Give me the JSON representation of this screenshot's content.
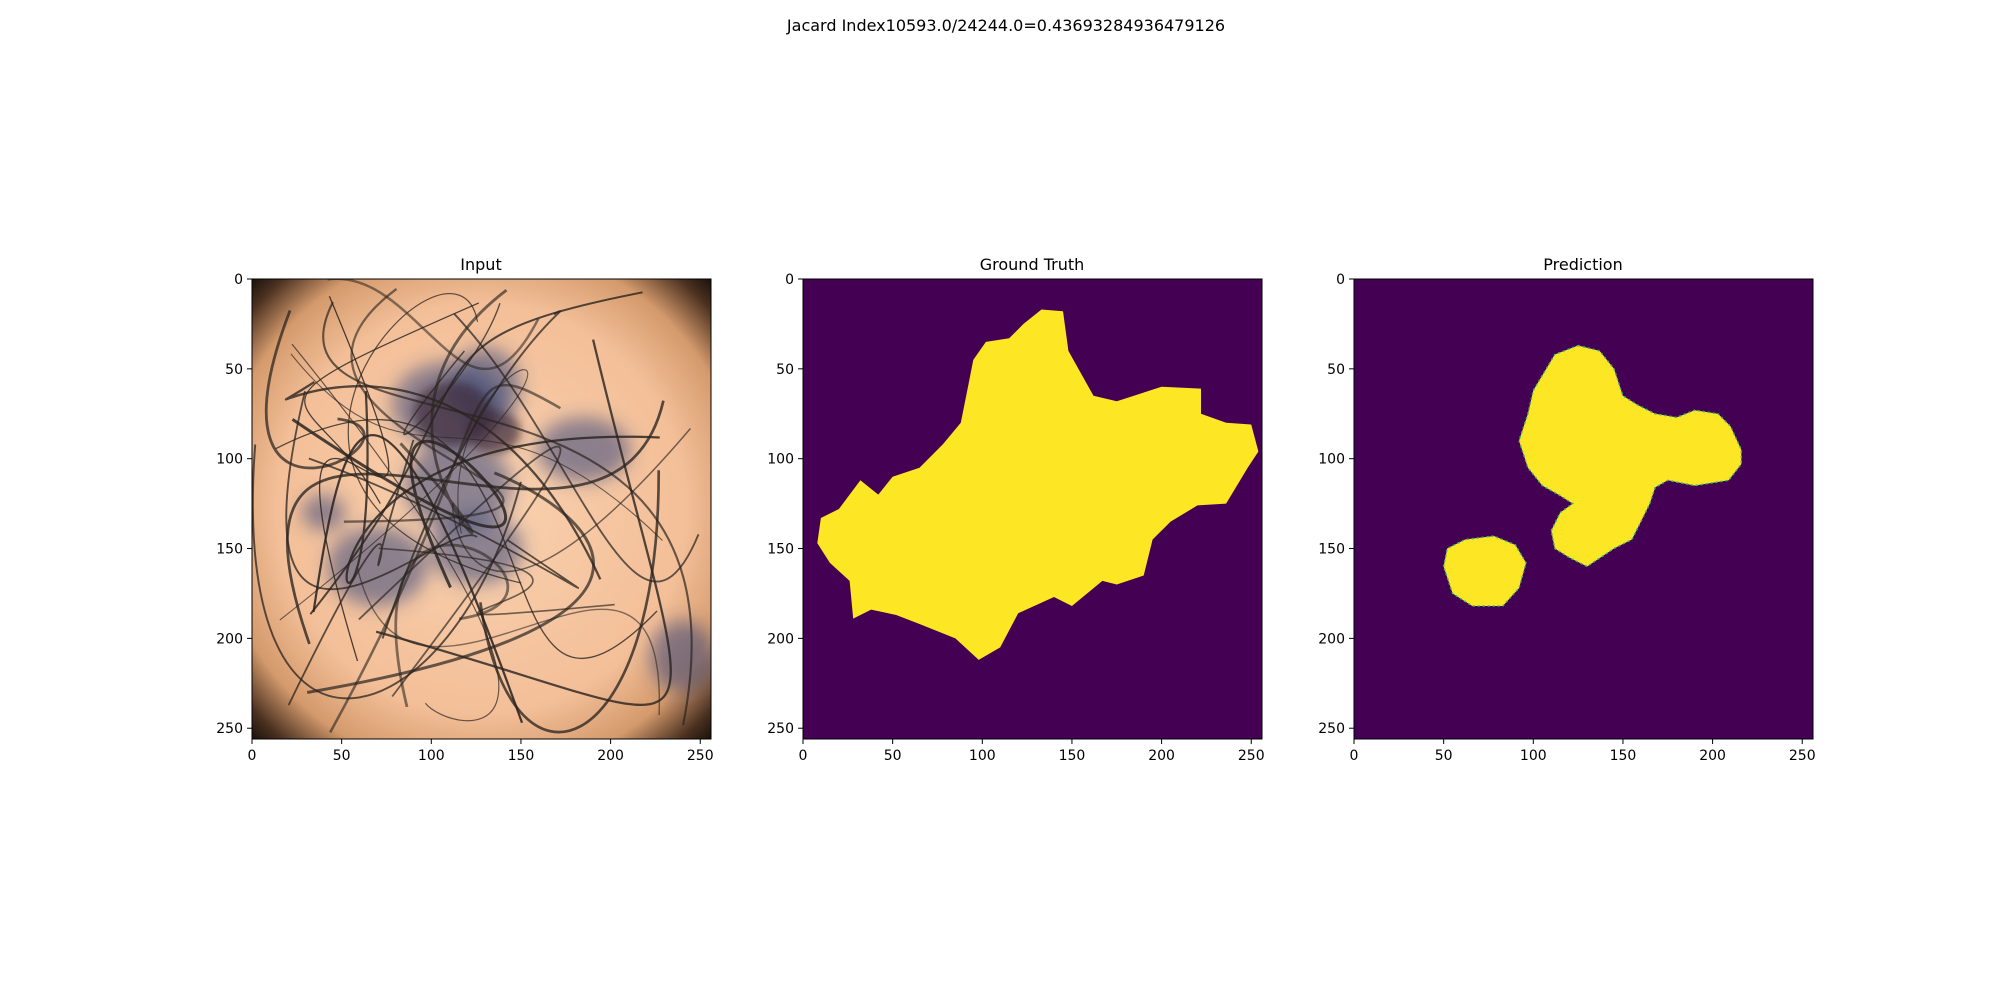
{
  "figure": {
    "suptitle": "Jacard Index10593.0/24244.0=0.43693284936479126"
  },
  "colors": {
    "background": "#440154",
    "foreground": "#fde725",
    "edge": "#35b779",
    "skin_light": "#f9d2b0",
    "skin_mid": "#f0b58d",
    "vignette": "#0d0805",
    "pigment_dark": "#3a2a3a",
    "pigment_blue": "#35457a",
    "hair": "#2a2420"
  },
  "chart_data": [
    {
      "type": "image",
      "title": "Input",
      "image_kind": "dermoscopy",
      "xlim": [
        0,
        256
      ],
      "ylim": [
        256,
        0
      ],
      "xticks": [
        0,
        50,
        100,
        150,
        200,
        250
      ],
      "yticks": [
        0,
        50,
        100,
        150,
        200,
        250
      ],
      "blue_blobs": [
        {
          "x": 110,
          "y": 70,
          "rx": 32,
          "ry": 24
        },
        {
          "x": 130,
          "y": 60,
          "rx": 20,
          "ry": 22
        },
        {
          "x": 185,
          "y": 95,
          "rx": 26,
          "ry": 18
        },
        {
          "x": 70,
          "y": 160,
          "rx": 28,
          "ry": 22
        },
        {
          "x": 125,
          "y": 150,
          "rx": 26,
          "ry": 20
        },
        {
          "x": 40,
          "y": 130,
          "rx": 12,
          "ry": 10
        },
        {
          "x": 240,
          "y": 210,
          "rx": 18,
          "ry": 20
        },
        {
          "x": 115,
          "y": 115,
          "rx": 30,
          "ry": 25
        }
      ],
      "dark_blobs": [
        {
          "x": 112,
          "y": 75,
          "rx": 22,
          "ry": 18
        },
        {
          "x": 135,
          "y": 85,
          "rx": 15,
          "ry": 12
        }
      ]
    },
    {
      "type": "mask",
      "title": "Ground Truth",
      "xlim": [
        0,
        256
      ],
      "ylim": [
        256,
        0
      ],
      "xticks": [
        0,
        50,
        100,
        150,
        200,
        250
      ],
      "yticks": [
        0,
        50,
        100,
        150,
        200,
        250
      ],
      "polygons": [
        [
          [
            133,
            17
          ],
          [
            145,
            18
          ],
          [
            148,
            40
          ],
          [
            162,
            65
          ],
          [
            175,
            68
          ],
          [
            200,
            60
          ],
          [
            222,
            61
          ],
          [
            222,
            75
          ],
          [
            236,
            80
          ],
          [
            250,
            81
          ],
          [
            254,
            96
          ],
          [
            248,
            105
          ],
          [
            236,
            125
          ],
          [
            220,
            126
          ],
          [
            205,
            135
          ],
          [
            195,
            145
          ],
          [
            190,
            165
          ],
          [
            175,
            170
          ],
          [
            167,
            168
          ],
          [
            150,
            182
          ],
          [
            140,
            177
          ],
          [
            120,
            186
          ],
          [
            110,
            205
          ],
          [
            98,
            212
          ],
          [
            85,
            200
          ],
          [
            65,
            192
          ],
          [
            52,
            187
          ],
          [
            38,
            184
          ],
          [
            28,
            189
          ],
          [
            26,
            168
          ],
          [
            15,
            158
          ],
          [
            8,
            147
          ],
          [
            10,
            133
          ],
          [
            20,
            128
          ],
          [
            32,
            112
          ],
          [
            42,
            120
          ],
          [
            50,
            110
          ],
          [
            65,
            105
          ],
          [
            78,
            92
          ],
          [
            88,
            80
          ],
          [
            92,
            60
          ],
          [
            95,
            45
          ],
          [
            102,
            35
          ],
          [
            115,
            33
          ],
          [
            123,
            25
          ]
        ]
      ]
    },
    {
      "type": "mask",
      "title": "Prediction",
      "xlim": [
        0,
        256
      ],
      "ylim": [
        256,
        0
      ],
      "xticks": [
        0,
        50,
        100,
        150,
        200,
        250
      ],
      "yticks": [
        0,
        50,
        100,
        150,
        200,
        250
      ],
      "polygons": [
        [
          [
            125,
            37
          ],
          [
            137,
            40
          ],
          [
            145,
            50
          ],
          [
            150,
            65
          ],
          [
            158,
            70
          ],
          [
            168,
            75
          ],
          [
            180,
            77
          ],
          [
            190,
            73
          ],
          [
            203,
            75
          ],
          [
            210,
            82
          ],
          [
            216,
            95
          ],
          [
            216,
            103
          ],
          [
            209,
            112
          ],
          [
            190,
            115
          ],
          [
            175,
            112
          ],
          [
            168,
            116
          ],
          [
            165,
            125
          ],
          [
            160,
            135
          ],
          [
            155,
            145
          ],
          [
            145,
            150
          ],
          [
            130,
            160
          ],
          [
            120,
            155
          ],
          [
            112,
            150
          ],
          [
            110,
            140
          ],
          [
            115,
            130
          ],
          [
            122,
            125
          ],
          [
            114,
            120
          ],
          [
            105,
            115
          ],
          [
            97,
            105
          ],
          [
            92,
            90
          ],
          [
            97,
            75
          ],
          [
            100,
            62
          ],
          [
            106,
            52
          ],
          [
            112,
            42
          ]
        ],
        [
          [
            50,
            160
          ],
          [
            52,
            150
          ],
          [
            62,
            145
          ],
          [
            78,
            143
          ],
          [
            90,
            148
          ],
          [
            96,
            158
          ],
          [
            92,
            172
          ],
          [
            83,
            182
          ],
          [
            66,
            182
          ],
          [
            55,
            175
          ]
        ]
      ]
    }
  ]
}
